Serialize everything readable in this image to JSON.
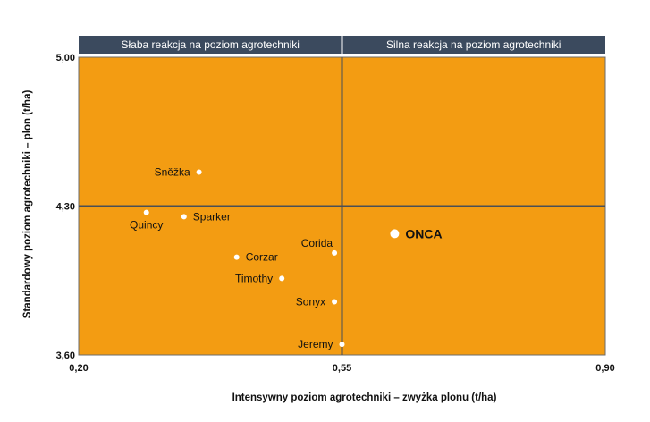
{
  "chart_data": {
    "type": "scatter",
    "xlabel": "Intensywny poziom agrotechniki – zwyżka plonu (t/ha)",
    "ylabel": "Standardowy poziom agrotechniki – plon (t/ha)",
    "xlim": [
      0.2,
      0.9
    ],
    "ylim": [
      3.6,
      5.0
    ],
    "xticks": [
      "0,20",
      "0,55",
      "0,90"
    ],
    "yticks": [
      "3,60",
      "4,30",
      "5,00"
    ],
    "x_divider": 0.55,
    "y_divider": 4.3,
    "bands": [
      {
        "label": "Słaba reakcja na poziom agrotechniki",
        "x_from": 0.2,
        "x_to": 0.55
      },
      {
        "label": "Silna reakcja na poziom agrotechniki",
        "x_from": 0.55,
        "x_to": 0.9
      }
    ],
    "colors": {
      "plot_bg": "#F39C12",
      "band_bg": "#3B4A5E",
      "divider": "#4A4F55",
      "point": "#FFFFFF"
    },
    "points": [
      {
        "label": "Sněžka",
        "x": 0.36,
        "y": 4.46,
        "label_side": "left"
      },
      {
        "label": "Quincy",
        "x": 0.29,
        "y": 4.27,
        "label_side": "below"
      },
      {
        "label": "Sparker",
        "x": 0.34,
        "y": 4.25,
        "label_side": "right"
      },
      {
        "label": "Corida",
        "x": 0.54,
        "y": 4.08,
        "label_side": "above"
      },
      {
        "label": "Corzar",
        "x": 0.41,
        "y": 4.06,
        "label_side": "right"
      },
      {
        "label": "Timothy",
        "x": 0.47,
        "y": 3.96,
        "label_side": "left"
      },
      {
        "label": "Sonyx",
        "x": 0.54,
        "y": 3.85,
        "label_side": "left"
      },
      {
        "label": "Jeremy",
        "x": 0.55,
        "y": 3.65,
        "label_side": "left"
      },
      {
        "label": "ONCA",
        "x": 0.62,
        "y": 4.17,
        "label_side": "right",
        "highlight": true
      }
    ]
  }
}
